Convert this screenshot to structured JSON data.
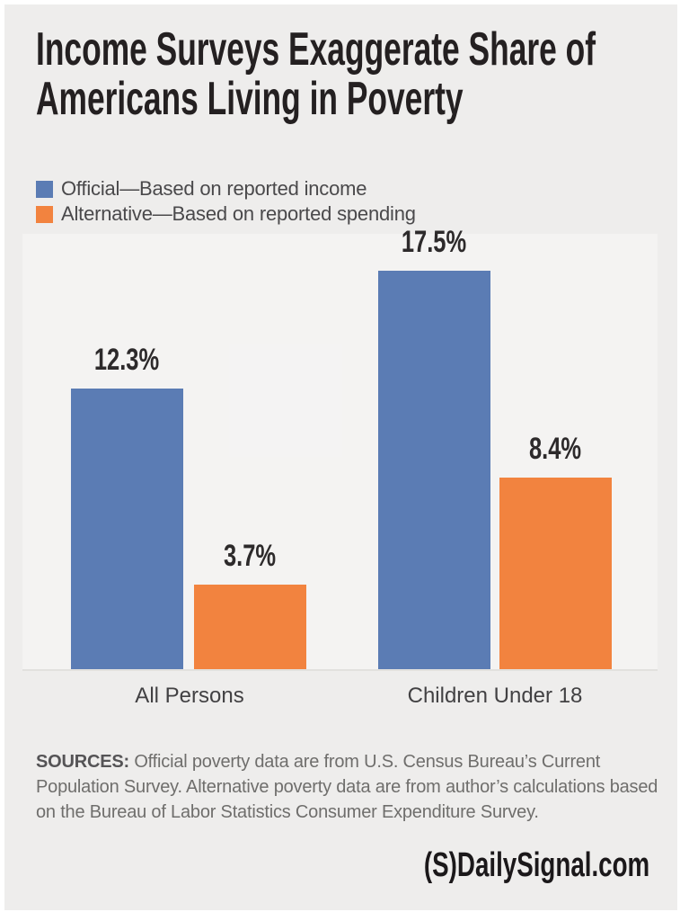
{
  "title": {
    "line1": "Income Surveys Exaggerate Share of",
    "line2": "Americans Living in Poverty"
  },
  "chart_data": {
    "type": "bar",
    "title": "Income Surveys Exaggerate Share of Americans Living in Poverty",
    "categories": [
      "All Persons",
      "Children Under 18"
    ],
    "series": [
      {
        "name": "Official—Based on reported income",
        "color": "#5b7cb4",
        "values": [
          12.3,
          17.5
        ],
        "labels": [
          "12.3%",
          "17.5%"
        ]
      },
      {
        "name": "Alternative—Based on reported spending",
        "color": "#f2833f",
        "values": [
          3.7,
          8.4
        ],
        "labels": [
          "3.7%",
          "8.4%"
        ]
      }
    ],
    "unit": "%",
    "ylim": [
      0,
      19
    ],
    "grid": false,
    "legend_position": "top-left",
    "value_labels_shown": true
  },
  "sources": {
    "label": "SOURCES:",
    "text": "Official poverty data are from U.S. Census Bureau’s Current Population Survey. Alternative poverty data are from author’s calculations based on the Bureau of Labor Statistics Consumer Expenditure Survey."
  },
  "footer": {
    "logo_mark": "(S)",
    "logo_text": "DailySignal.com"
  },
  "colors": {
    "background": "#eeedec",
    "official_blue": "#5b7cb4",
    "alternative_orange": "#f2833f",
    "axis_line": "#e2e1de",
    "title_text": "#242021"
  }
}
